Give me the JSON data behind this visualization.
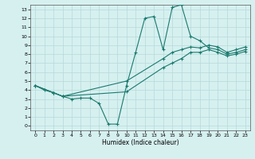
{
  "xlabel": "Humidex (Indice chaleur)",
  "bg_color": "#d6f0f0",
  "grid_color": "#b8d8d8",
  "line_color": "#1a7a6e",
  "xlim": [
    -0.5,
    23.5
  ],
  "ylim": [
    -0.5,
    13.5
  ],
  "xticks": [
    0,
    1,
    2,
    3,
    4,
    5,
    6,
    7,
    8,
    9,
    10,
    11,
    12,
    13,
    14,
    15,
    16,
    17,
    18,
    19,
    20,
    21,
    22,
    23
  ],
  "yticks": [
    0,
    1,
    2,
    3,
    4,
    5,
    6,
    7,
    8,
    9,
    10,
    11,
    12,
    13
  ],
  "line1_x": [
    0,
    1,
    2,
    3,
    4,
    5,
    6,
    7,
    8,
    9,
    10,
    11,
    12,
    13,
    14,
    15,
    16,
    17,
    18,
    19,
    20,
    21,
    22,
    23
  ],
  "line1_y": [
    4.5,
    4.0,
    3.7,
    3.3,
    3.0,
    3.1,
    3.1,
    2.5,
    0.2,
    0.2,
    4.5,
    8.2,
    12.0,
    12.2,
    8.5,
    13.2,
    13.5,
    10.0,
    9.5,
    8.7,
    8.5,
    8.0,
    8.2,
    8.5
  ],
  "line2_x": [
    0,
    2,
    3,
    10,
    14,
    15,
    16,
    17,
    18,
    19,
    20,
    21,
    22,
    23
  ],
  "line2_y": [
    4.5,
    3.7,
    3.3,
    5.0,
    7.5,
    8.2,
    8.5,
    8.8,
    8.7,
    9.0,
    8.8,
    8.2,
    8.5,
    8.8
  ],
  "line3_x": [
    0,
    2,
    3,
    10,
    14,
    15,
    16,
    17,
    18,
    19,
    20,
    21,
    22,
    23
  ],
  "line3_y": [
    4.5,
    3.7,
    3.3,
    3.8,
    6.5,
    7.0,
    7.5,
    8.2,
    8.2,
    8.5,
    8.2,
    7.8,
    8.0,
    8.3
  ]
}
